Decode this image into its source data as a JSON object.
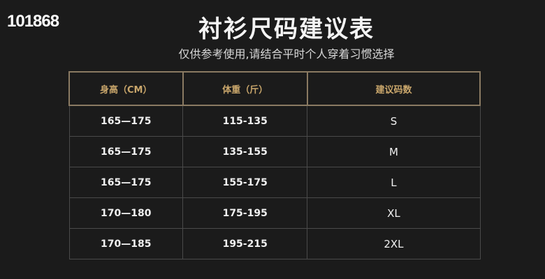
{
  "corner_text": "101868",
  "title": "衬衫尺码建议表",
  "subtitle": "仅供参考使用,请结合平时个人穿着习惯选择",
  "table": {
    "headers": [
      "身高（CM）",
      "体重（斤）",
      "建议码数"
    ],
    "rows": [
      [
        "165—175",
        "115-135",
        "S"
      ],
      [
        "165—175",
        "135-155",
        "M"
      ],
      [
        "165—175",
        "155-175",
        "L"
      ],
      [
        "170—180",
        "175-195",
        "XL"
      ],
      [
        "170—185",
        "195-215",
        "2XL"
      ]
    ]
  },
  "colors": {
    "background": "#1b1b1b",
    "header_text": "#c9a66b",
    "border": "#8a7a62"
  }
}
